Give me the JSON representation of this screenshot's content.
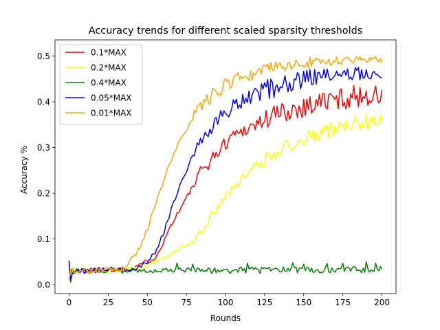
{
  "chart_data": {
    "type": "line",
    "title": "Accuracy trends for different scaled sparsity thresholds",
    "xlabel": "Rounds",
    "ylabel": "Accuracy %",
    "xlim": [
      -9,
      209
    ],
    "ylim": [
      -0.0195,
      0.5355
    ],
    "xticks": [
      0,
      25,
      50,
      75,
      100,
      125,
      150,
      175,
      200
    ],
    "yticks": [
      0.0,
      0.1,
      0.2,
      0.3,
      0.4,
      0.5
    ],
    "xtick_labels": [
      "0",
      "25",
      "50",
      "75",
      "100",
      "125",
      "150",
      "175",
      "200"
    ],
    "ytick_labels": [
      "0.0",
      "0.1",
      "0.2",
      "0.3",
      "0.4",
      "0.5"
    ],
    "grid": false,
    "legend_position": "top-left",
    "colors": {
      "0.1*MAX": "#ff0000",
      "0.2*MAX": "#ffff00",
      "0.4*MAX": "#008000",
      "0.05*MAX": "#0000ff",
      "0.01*MAX": "#ffa500"
    },
    "series": [
      {
        "name": "0.1*MAX",
        "color": "#ff0000",
        "anchors": [
          [
            0,
            0.03
          ],
          [
            10,
            0.03
          ],
          [
            20,
            0.032
          ],
          [
            30,
            0.033
          ],
          [
            40,
            0.035
          ],
          [
            45,
            0.045
          ],
          [
            50,
            0.05
          ],
          [
            55,
            0.06
          ],
          [
            60,
            0.09
          ],
          [
            65,
            0.13
          ],
          [
            70,
            0.16
          ],
          [
            75,
            0.19
          ],
          [
            80,
            0.22
          ],
          [
            85,
            0.25
          ],
          [
            90,
            0.27
          ],
          [
            95,
            0.29
          ],
          [
            100,
            0.31
          ],
          [
            105,
            0.33
          ],
          [
            110,
            0.335
          ],
          [
            115,
            0.345
          ],
          [
            120,
            0.35
          ],
          [
            125,
            0.36
          ],
          [
            130,
            0.37
          ],
          [
            135,
            0.375
          ],
          [
            140,
            0.38
          ],
          [
            145,
            0.385
          ],
          [
            150,
            0.39
          ],
          [
            160,
            0.4
          ],
          [
            170,
            0.405
          ],
          [
            180,
            0.41
          ],
          [
            190,
            0.415
          ],
          [
            200,
            0.41
          ]
        ],
        "noise": [
          0.006,
          0.005,
          0.015,
          0.025,
          0.025
        ]
      },
      {
        "name": "0.2*MAX",
        "color": "#ffff00",
        "anchors": [
          [
            0,
            0.03
          ],
          [
            10,
            0.03
          ],
          [
            20,
            0.032
          ],
          [
            30,
            0.033
          ],
          [
            40,
            0.034
          ],
          [
            50,
            0.04
          ],
          [
            55,
            0.05
          ],
          [
            60,
            0.055
          ],
          [
            65,
            0.065
          ],
          [
            70,
            0.075
          ],
          [
            75,
            0.085
          ],
          [
            80,
            0.1
          ],
          [
            85,
            0.12
          ],
          [
            90,
            0.145
          ],
          [
            95,
            0.17
          ],
          [
            100,
            0.19
          ],
          [
            105,
            0.21
          ],
          [
            110,
            0.23
          ],
          [
            115,
            0.25
          ],
          [
            120,
            0.26
          ],
          [
            125,
            0.275
          ],
          [
            130,
            0.285
          ],
          [
            135,
            0.295
          ],
          [
            140,
            0.305
          ],
          [
            145,
            0.31
          ],
          [
            150,
            0.32
          ],
          [
            160,
            0.33
          ],
          [
            170,
            0.34
          ],
          [
            180,
            0.35
          ],
          [
            190,
            0.355
          ],
          [
            200,
            0.36
          ]
        ],
        "noise": [
          0.006,
          0.005,
          0.01,
          0.016,
          0.018
        ]
      },
      {
        "name": "0.4*MAX",
        "color": "#008000",
        "anchors": [
          [
            0,
            0.03
          ],
          [
            200,
            0.033
          ]
        ],
        "noise": [
          0.006,
          0.006,
          0.007,
          0.007,
          0.007
        ],
        "spikes": [
          [
            0,
            0.052
          ],
          [
            1,
            0.005
          ],
          [
            69,
            0.047
          ],
          [
            79,
            0.045
          ],
          [
            114,
            0.047
          ],
          [
            143,
            0.048
          ],
          [
            150,
            0.045
          ],
          [
            165,
            0.046
          ],
          [
            175,
            0.047
          ],
          [
            190,
            0.05
          ],
          [
            196,
            0.047
          ]
        ]
      },
      {
        "name": "0.05*MAX",
        "color": "#0000ff",
        "anchors": [
          [
            0,
            0.03
          ],
          [
            10,
            0.03
          ],
          [
            20,
            0.032
          ],
          [
            30,
            0.033
          ],
          [
            40,
            0.035
          ],
          [
            45,
            0.04
          ],
          [
            50,
            0.05
          ],
          [
            55,
            0.07
          ],
          [
            60,
            0.11
          ],
          [
            65,
            0.16
          ],
          [
            70,
            0.21
          ],
          [
            75,
            0.25
          ],
          [
            80,
            0.29
          ],
          [
            85,
            0.32
          ],
          [
            90,
            0.34
          ],
          [
            95,
            0.36
          ],
          [
            100,
            0.375
          ],
          [
            105,
            0.39
          ],
          [
            110,
            0.4
          ],
          [
            115,
            0.41
          ],
          [
            120,
            0.42
          ],
          [
            125,
            0.425
          ],
          [
            130,
            0.43
          ],
          [
            135,
            0.435
          ],
          [
            140,
            0.44
          ],
          [
            145,
            0.445
          ],
          [
            150,
            0.45
          ],
          [
            160,
            0.455
          ],
          [
            170,
            0.46
          ],
          [
            180,
            0.46
          ],
          [
            190,
            0.465
          ],
          [
            200,
            0.455
          ]
        ],
        "noise": [
          0.006,
          0.005,
          0.016,
          0.022,
          0.015
        ],
        "spikes": [
          [
            0,
            0.052
          ],
          [
            1,
            0.01
          ]
        ]
      },
      {
        "name": "0.01*MAX",
        "color": "#ffa500",
        "anchors": [
          [
            0,
            0.03
          ],
          [
            10,
            0.03
          ],
          [
            20,
            0.032
          ],
          [
            30,
            0.033
          ],
          [
            35,
            0.035
          ],
          [
            40,
            0.055
          ],
          [
            45,
            0.08
          ],
          [
            50,
            0.12
          ],
          [
            55,
            0.17
          ],
          [
            60,
            0.22
          ],
          [
            65,
            0.27
          ],
          [
            70,
            0.31
          ],
          [
            75,
            0.34
          ],
          [
            80,
            0.37
          ],
          [
            85,
            0.39
          ],
          [
            90,
            0.41
          ],
          [
            95,
            0.425
          ],
          [
            100,
            0.435
          ],
          [
            105,
            0.445
          ],
          [
            110,
            0.455
          ],
          [
            115,
            0.46
          ],
          [
            120,
            0.465
          ],
          [
            125,
            0.47
          ],
          [
            130,
            0.475
          ],
          [
            140,
            0.48
          ],
          [
            150,
            0.485
          ],
          [
            160,
            0.488
          ],
          [
            170,
            0.49
          ],
          [
            180,
            0.492
          ],
          [
            190,
            0.495
          ],
          [
            200,
            0.49
          ]
        ],
        "noise": [
          0.006,
          0.006,
          0.016,
          0.012,
          0.009
        ],
        "spikes": [
          [
            0,
            0.01
          ]
        ]
      }
    ]
  }
}
